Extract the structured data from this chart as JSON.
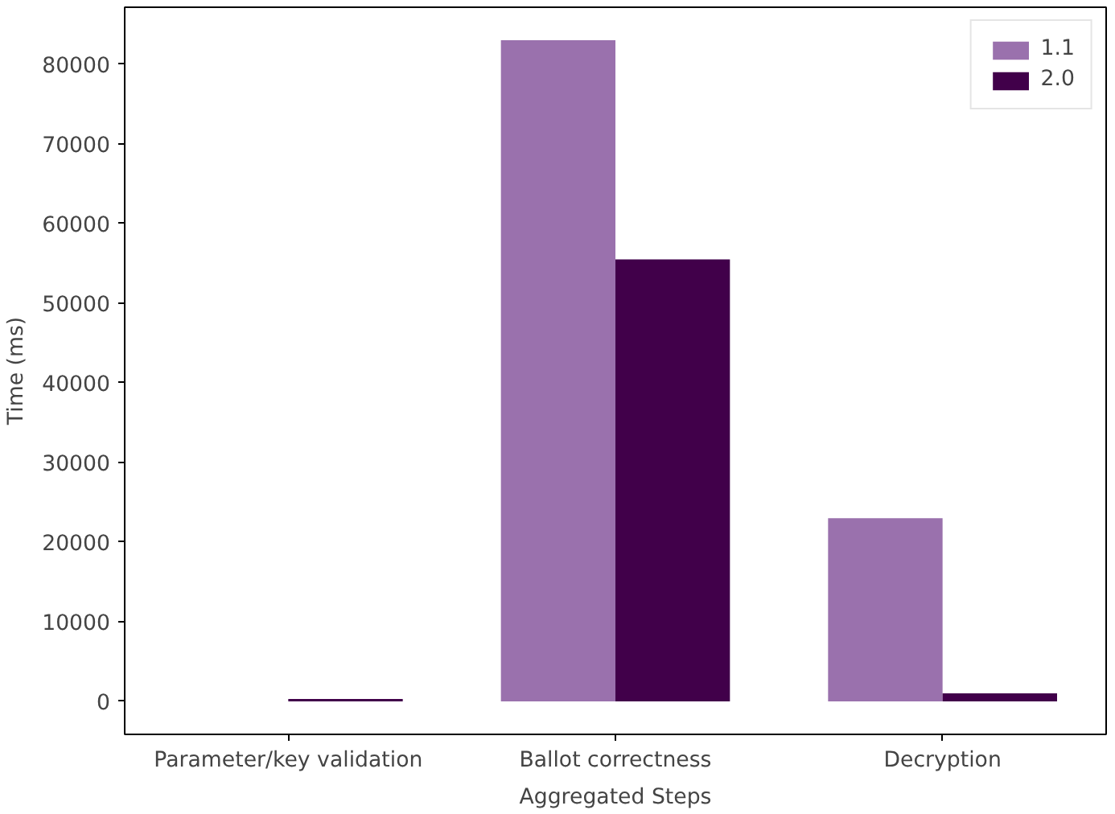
{
  "chart_data": {
    "type": "bar",
    "xlabel": "Aggregated Steps",
    "ylabel": "Time (ms)",
    "categories": [
      "Parameter/key validation",
      "Ballot correctness",
      "Decryption"
    ],
    "series": [
      {
        "name": "1.1",
        "color": "#9a71ad",
        "values": [
          0,
          83000,
          23000
        ]
      },
      {
        "name": "2.0",
        "color": "#41004a",
        "values": [
          300,
          55500,
          1000
        ]
      }
    ],
    "ylim": [
      -4150,
      87150
    ],
    "yticks": [
      0,
      10000,
      20000,
      30000,
      40000,
      50000,
      60000,
      70000,
      80000
    ],
    "grid": false,
    "legend": "top right"
  }
}
